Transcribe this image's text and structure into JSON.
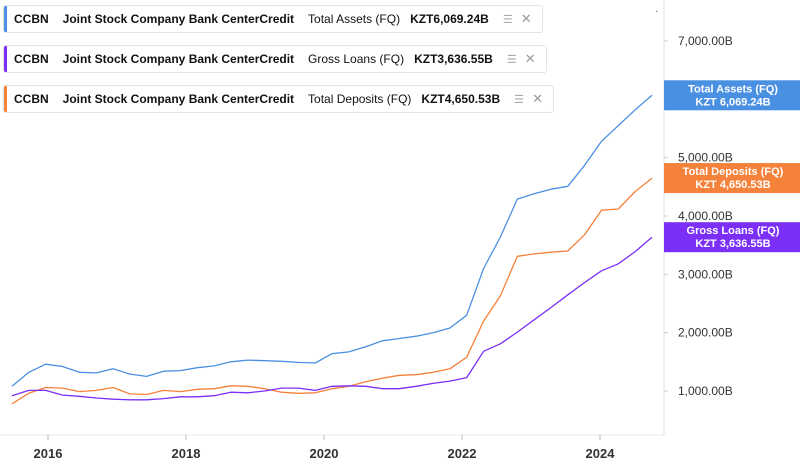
{
  "legend": [
    {
      "ticker": "CCBN",
      "company": "Joint Stock Company Bank CenterCredit",
      "metric": "Total Assets (FQ)",
      "value": "KZT6,069.24B",
      "color": "#4a90e2",
      "icon": "layers-icon"
    },
    {
      "ticker": "CCBN",
      "company": "Joint Stock Company Bank CenterCredit",
      "metric": "Gross Loans (FQ)",
      "value": "KZT3,636.55B",
      "color": "#7b2ff7",
      "icon": "layers-icon"
    },
    {
      "ticker": "CCBN",
      "company": "Joint Stock Company Bank CenterCredit",
      "metric": "Total Deposits (FQ)",
      "value": "KZT4,650.53B",
      "color": "#f5823a",
      "icon": "layers-icon"
    }
  ],
  "top_marker": "·",
  "chart_data": {
    "type": "line",
    "x_ticks": [
      "2016",
      "2018",
      "2020",
      "2022",
      "2024"
    ],
    "y_ticks": [
      "1,000.00B",
      "2,000.00B",
      "3,000.00B",
      "4,000.00B",
      "5,000.00B",
      "7,000.00B"
    ],
    "y_tick_values": [
      1000,
      2000,
      3000,
      4000,
      5000,
      7000
    ],
    "ylim": [
      0,
      7800
    ],
    "xlim": [
      2015.55,
      2025.0
    ],
    "grid": false,
    "series": [
      {
        "name": "Total Assets (FQ)",
        "color": "#4a90e2",
        "flag_label": "Total Assets (FQ)",
        "flag_value": "KZT 6,069.24B",
        "points": [
          [
            2015.75,
            1080
          ],
          [
            2016.0,
            1320
          ],
          [
            2016.25,
            1460
          ],
          [
            2016.5,
            1420
          ],
          [
            2016.75,
            1320
          ],
          [
            2017.0,
            1310
          ],
          [
            2017.25,
            1380
          ],
          [
            2017.5,
            1290
          ],
          [
            2017.75,
            1250
          ],
          [
            2018.0,
            1340
          ],
          [
            2018.25,
            1350
          ],
          [
            2018.5,
            1400
          ],
          [
            2018.75,
            1430
          ],
          [
            2019.0,
            1500
          ],
          [
            2019.25,
            1530
          ],
          [
            2019.5,
            1520
          ],
          [
            2019.75,
            1510
          ],
          [
            2020.0,
            1490
          ],
          [
            2020.25,
            1480
          ],
          [
            2020.5,
            1640
          ],
          [
            2020.75,
            1670
          ],
          [
            2021.0,
            1760
          ],
          [
            2021.25,
            1860
          ],
          [
            2021.5,
            1900
          ],
          [
            2021.75,
            1940
          ],
          [
            2022.0,
            2000
          ],
          [
            2022.25,
            2080
          ],
          [
            2022.5,
            2300
          ],
          [
            2022.75,
            3100
          ],
          [
            2023.0,
            3640
          ],
          [
            2023.25,
            4290
          ],
          [
            2023.5,
            4380
          ],
          [
            2023.75,
            4460
          ],
          [
            2024.0,
            4510
          ],
          [
            2024.25,
            4870
          ],
          [
            2024.5,
            5280
          ],
          [
            2024.75,
            5550
          ],
          [
            2025.0,
            5820
          ],
          [
            2025.25,
            6069.24
          ]
        ]
      },
      {
        "name": "Total Deposits (FQ)",
        "color": "#f5823a",
        "flag_label": "Total Deposits (FQ)",
        "flag_value": "KZT 4,650.53B",
        "points": [
          [
            2015.75,
            780
          ],
          [
            2016.0,
            960
          ],
          [
            2016.25,
            1060
          ],
          [
            2016.5,
            1050
          ],
          [
            2016.75,
            990
          ],
          [
            2017.0,
            1010
          ],
          [
            2017.25,
            1060
          ],
          [
            2017.5,
            950
          ],
          [
            2017.75,
            940
          ],
          [
            2018.0,
            1010
          ],
          [
            2018.25,
            990
          ],
          [
            2018.5,
            1030
          ],
          [
            2018.75,
            1040
          ],
          [
            2019.0,
            1090
          ],
          [
            2019.25,
            1080
          ],
          [
            2019.5,
            1040
          ],
          [
            2019.75,
            980
          ],
          [
            2020.0,
            960
          ],
          [
            2020.25,
            970
          ],
          [
            2020.5,
            1040
          ],
          [
            2020.75,
            1080
          ],
          [
            2021.0,
            1160
          ],
          [
            2021.25,
            1220
          ],
          [
            2021.5,
            1270
          ],
          [
            2021.75,
            1280
          ],
          [
            2022.0,
            1320
          ],
          [
            2022.25,
            1380
          ],
          [
            2022.5,
            1580
          ],
          [
            2022.75,
            2200
          ],
          [
            2023.0,
            2630
          ],
          [
            2023.25,
            3310
          ],
          [
            2023.5,
            3350
          ],
          [
            2023.75,
            3380
          ],
          [
            2024.0,
            3400
          ],
          [
            2024.25,
            3680
          ],
          [
            2024.5,
            4100
          ],
          [
            2024.75,
            4120
          ],
          [
            2025.0,
            4420
          ],
          [
            2025.25,
            4650.53
          ]
        ]
      },
      {
        "name": "Gross Loans (FQ)",
        "color": "#7b2ff7",
        "flag_label": "Gross Loans (FQ)",
        "flag_value": "KZT 3,636.55B",
        "points": [
          [
            2015.75,
            920
          ],
          [
            2016.0,
            1010
          ],
          [
            2016.25,
            1010
          ],
          [
            2016.5,
            930
          ],
          [
            2016.75,
            910
          ],
          [
            2017.0,
            880
          ],
          [
            2017.25,
            860
          ],
          [
            2017.5,
            850
          ],
          [
            2017.75,
            850
          ],
          [
            2018.0,
            870
          ],
          [
            2018.25,
            900
          ],
          [
            2018.5,
            900
          ],
          [
            2018.75,
            920
          ],
          [
            2019.0,
            980
          ],
          [
            2019.25,
            970
          ],
          [
            2019.5,
            1000
          ],
          [
            2019.75,
            1050
          ],
          [
            2020.0,
            1050
          ],
          [
            2020.25,
            1010
          ],
          [
            2020.5,
            1080
          ],
          [
            2020.75,
            1090
          ],
          [
            2021.0,
            1080
          ],
          [
            2021.25,
            1040
          ],
          [
            2021.5,
            1040
          ],
          [
            2021.75,
            1080
          ],
          [
            2022.0,
            1130
          ],
          [
            2022.25,
            1170
          ],
          [
            2022.5,
            1230
          ],
          [
            2022.75,
            1680
          ],
          [
            2023.0,
            1810
          ],
          [
            2023.25,
            2010
          ],
          [
            2023.5,
            2220
          ],
          [
            2023.75,
            2430
          ],
          [
            2024.0,
            2650
          ],
          [
            2024.25,
            2860
          ],
          [
            2024.5,
            3060
          ],
          [
            2024.75,
            3180
          ],
          [
            2025.0,
            3390
          ],
          [
            2025.25,
            3636.55
          ]
        ]
      }
    ]
  }
}
